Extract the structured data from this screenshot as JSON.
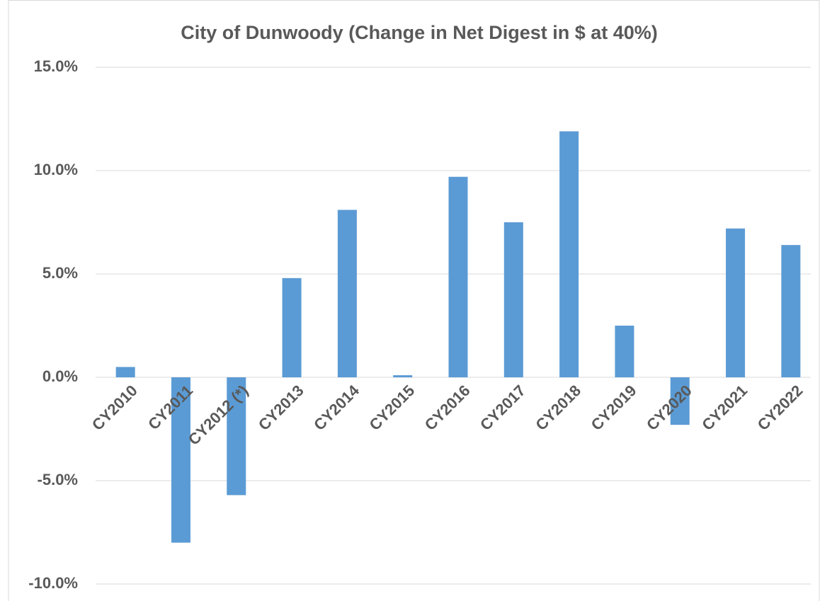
{
  "chart_data": {
    "type": "bar",
    "title": "City of Dunwoody (Change in Net Digest in $ at 40%)",
    "categories": [
      "CY2010",
      "CY2011",
      "CY2012 (*)",
      "CY2013",
      "CY2014",
      "CY2015",
      "CY2016",
      "CY2017",
      "CY2018",
      "CY2019",
      "CY2020",
      "CY2021",
      "CY2022"
    ],
    "values": [
      0.5,
      -8.0,
      -5.7,
      4.8,
      8.1,
      0.1,
      9.7,
      7.5,
      11.9,
      2.5,
      -2.3,
      7.2,
      6.4
    ],
    "color": "#5b9bd5",
    "ylim": [
      -10,
      15
    ],
    "yticks": [
      {
        "value": -10,
        "label": "-10.0%"
      },
      {
        "value": -5,
        "label": "-5.0%"
      },
      {
        "value": 0,
        "label": "0.0%"
      },
      {
        "value": 5,
        "label": "5.0%"
      },
      {
        "value": 10,
        "label": "10.0%"
      },
      {
        "value": 15,
        "label": "15.0%"
      }
    ],
    "grid": true
  }
}
